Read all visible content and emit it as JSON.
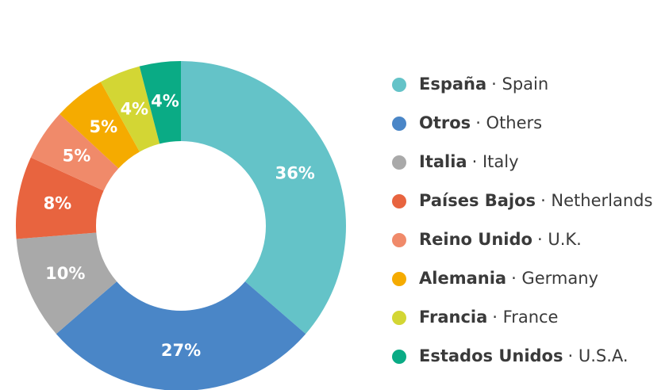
{
  "chart_data": {
    "type": "pie",
    "categories": [
      "España",
      "Otros",
      "Italia",
      "Países Bajos",
      "Reino Unido",
      "Alemania",
      "Francia",
      "Estados Unidos"
    ],
    "translations": [
      "· Spain",
      "· Others",
      "· Italy",
      "· Netherlands",
      "· U.K.",
      "· Germany",
      "· France",
      "· U.S.A."
    ],
    "values": [
      36,
      27,
      10,
      8,
      5,
      5,
      4,
      4
    ],
    "value_labels": [
      "36%",
      "27%",
      "10%",
      "8%",
      "5%",
      "5%",
      "4%",
      "4%"
    ],
    "colors": [
      "#64c3c8",
      "#4a86c7",
      "#a9a9a9",
      "#e8643f",
      "#f08a6a",
      "#f5ab00",
      "#d3d634",
      "#0aab85"
    ],
    "legend": "right"
  }
}
